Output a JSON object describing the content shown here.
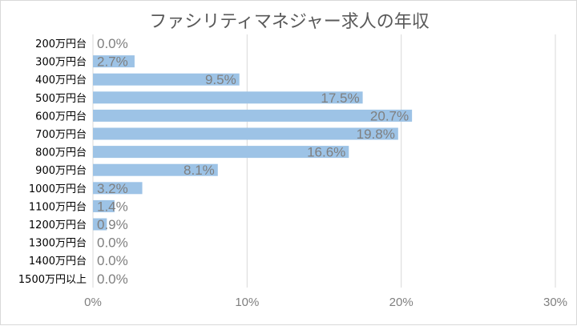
{
  "chart_data": {
    "type": "bar",
    "orientation": "horizontal",
    "title": "ファシリティマネジャー求人の年収",
    "categories": [
      "200万円台",
      "300万円台",
      "400万円台",
      "500万円台",
      "600万円台",
      "700万円台",
      "800万円台",
      "900万円台",
      "1000万円台",
      "1100万円台",
      "1200万円台",
      "1300万円台",
      "1400万円台",
      "1500万円以上"
    ],
    "values": [
      0.0,
      2.7,
      9.5,
      17.5,
      20.7,
      19.8,
      16.6,
      8.1,
      3.2,
      1.4,
      0.9,
      0.0,
      0.0,
      0.0
    ],
    "value_labels": [
      "0.0%",
      "2.7%",
      "9.5%",
      "17.5%",
      "20.7%",
      "19.8%",
      "16.6%",
      "8.1%",
      "3.2%",
      "1.4%",
      "0.9%",
      "0.0%",
      "0.0%",
      "0.0%"
    ],
    "xlim": [
      0,
      30
    ],
    "x_ticks": [
      0,
      10,
      20,
      30
    ],
    "x_tick_labels": [
      "0%",
      "10%",
      "20%",
      "30%"
    ],
    "grid": true,
    "legend": "none",
    "bar_color": "#9dc3e6"
  }
}
